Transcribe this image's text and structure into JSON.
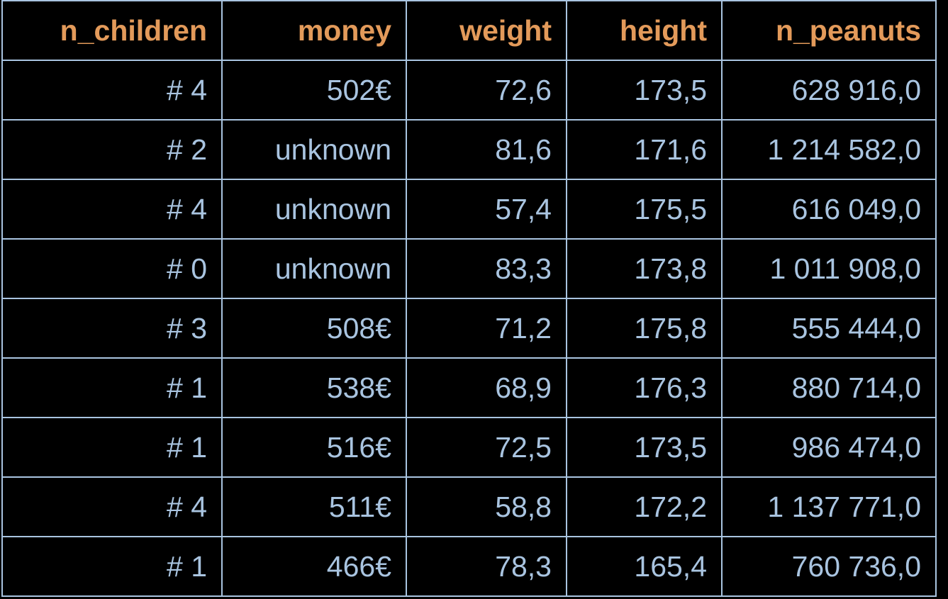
{
  "table": {
    "columns": [
      "n_children",
      "money",
      "weight",
      "height",
      "n_peanuts"
    ],
    "rows": [
      [
        "# 4",
        "502€",
        "72,6",
        "173,5",
        "628 916,0"
      ],
      [
        "# 2",
        "unknown",
        "81,6",
        "171,6",
        "1 214 582,0"
      ],
      [
        "# 4",
        "unknown",
        "57,4",
        "175,5",
        "616 049,0"
      ],
      [
        "# 0",
        "unknown",
        "83,3",
        "173,8",
        "1 011 908,0"
      ],
      [
        "# 3",
        "508€",
        "71,2",
        "175,8",
        "555 444,0"
      ],
      [
        "# 1",
        "538€",
        "68,9",
        "176,3",
        "880 714,0"
      ],
      [
        "# 1",
        "516€",
        "72,5",
        "173,5",
        "986 474,0"
      ],
      [
        "# 4",
        "511€",
        "58,8",
        "172,2",
        "1 137 771,0"
      ],
      [
        "# 1",
        "466€",
        "78,3",
        "165,4",
        "760 736,0"
      ]
    ]
  },
  "colors": {
    "background": "#000000",
    "header_text": "#e39a5a",
    "cell_text": "#a9c4e0",
    "border": "#a9c4e0"
  }
}
